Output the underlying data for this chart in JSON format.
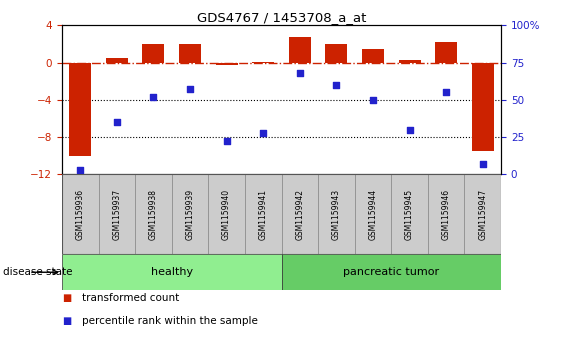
{
  "title": "GDS4767 / 1453708_a_at",
  "samples": [
    "GSM1159936",
    "GSM1159937",
    "GSM1159938",
    "GSM1159939",
    "GSM1159940",
    "GSM1159941",
    "GSM1159942",
    "GSM1159943",
    "GSM1159944",
    "GSM1159945",
    "GSM1159946",
    "GSM1159947"
  ],
  "transformed_count": [
    -10.0,
    0.5,
    2.0,
    2.0,
    -0.3,
    0.1,
    2.8,
    2.0,
    1.5,
    0.3,
    2.2,
    -9.5
  ],
  "percentile_rank": [
    3,
    35,
    52,
    57,
    22,
    28,
    68,
    60,
    50,
    30,
    55,
    7
  ],
  "disease_groups": [
    {
      "label": "healthy",
      "start": 0,
      "end": 6,
      "color": "#90EE90"
    },
    {
      "label": "pancreatic tumor",
      "start": 6,
      "end": 12,
      "color": "#66CC66"
    }
  ],
  "ylim_left": [
    -12,
    4
  ],
  "ylim_right": [
    0,
    100
  ],
  "yticks_left": [
    -12,
    -8,
    -4,
    0,
    4
  ],
  "yticks_right": [
    0,
    25,
    50,
    75,
    100
  ],
  "bar_color": "#CC2200",
  "scatter_color": "#2222CC",
  "hline_color": "#CC2200",
  "dotted_line_color": "#000000",
  "background_color": "#FFFFFF",
  "plot_bg_color": "#FFFFFF",
  "legend_items": [
    {
      "label": "transformed count",
      "color": "#CC2200"
    },
    {
      "label": "percentile rank within the sample",
      "color": "#2222CC"
    }
  ],
  "disease_label": "disease state",
  "bar_width": 0.6,
  "sample_box_color": "#CCCCCC",
  "healthy_color": "#90EE90",
  "tumor_color": "#66CC66"
}
